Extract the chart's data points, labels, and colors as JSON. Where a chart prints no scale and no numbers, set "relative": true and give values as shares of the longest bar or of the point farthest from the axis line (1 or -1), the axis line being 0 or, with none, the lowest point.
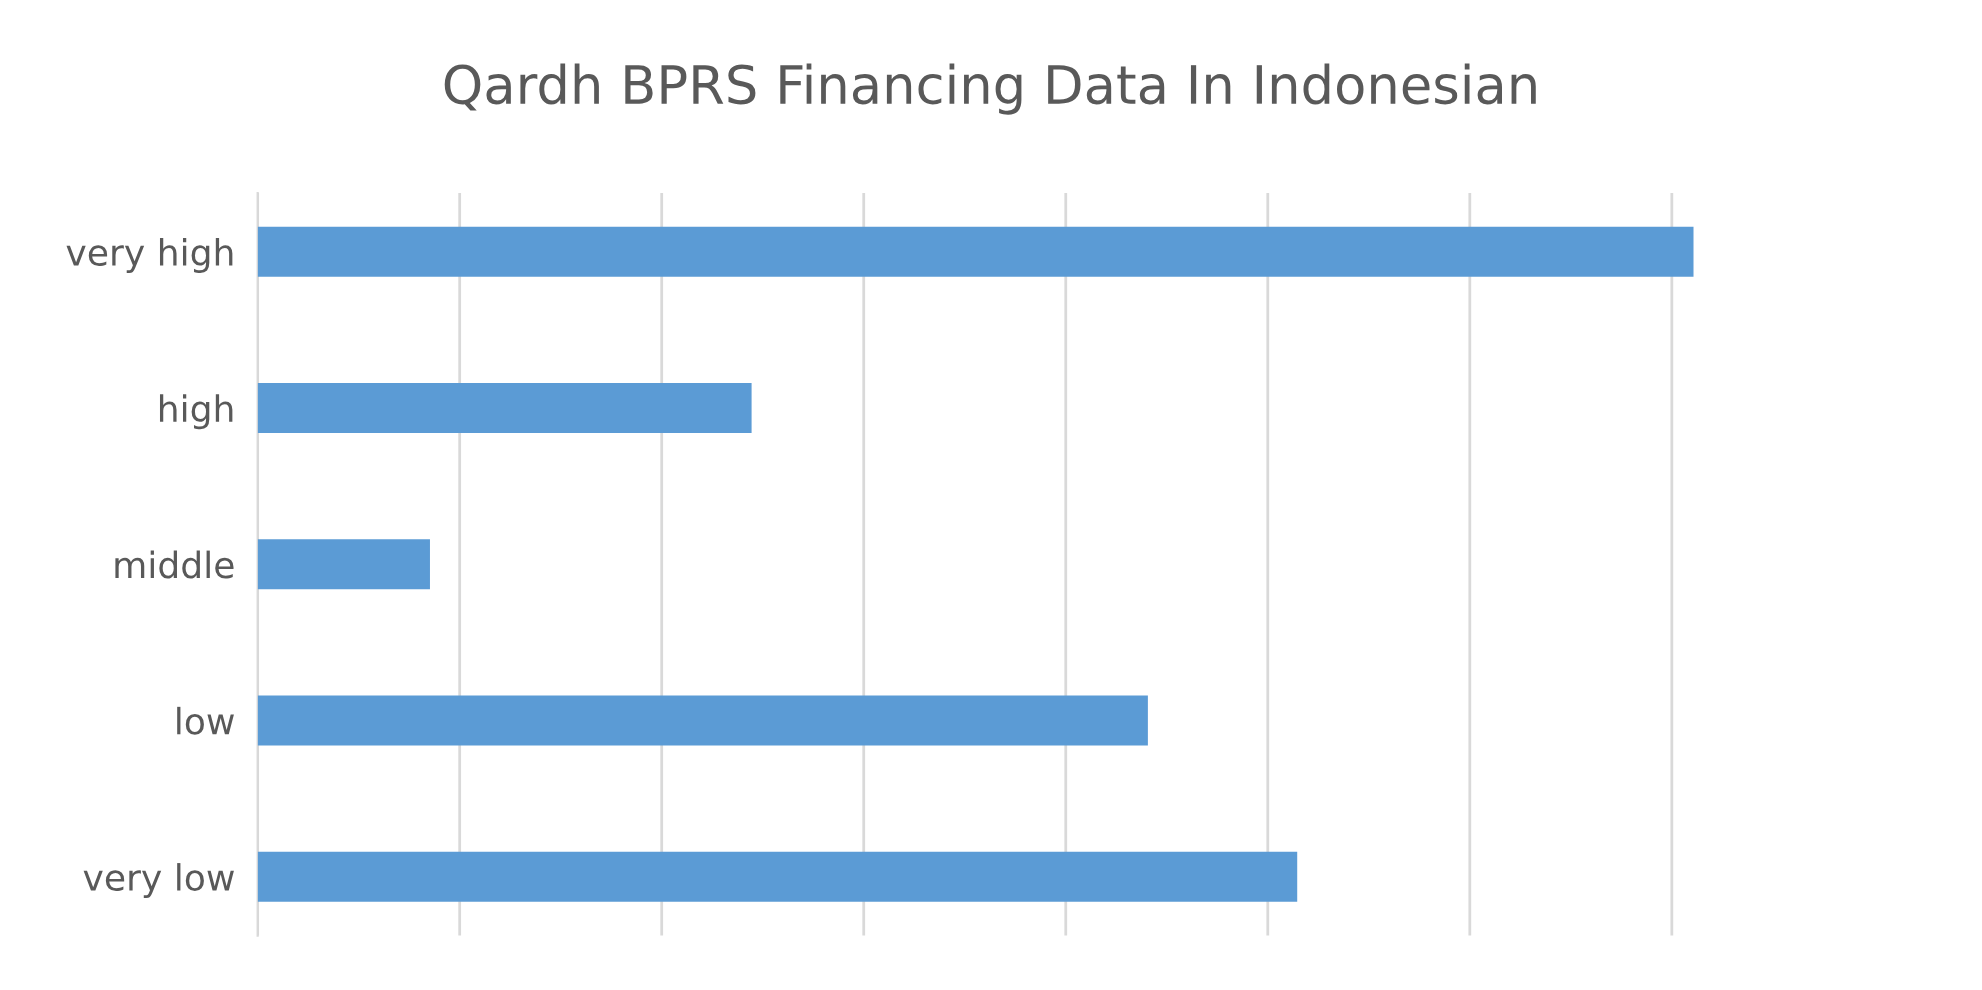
{
  "chart_data": {
    "type": "bar",
    "orientation": "horizontal",
    "relative": true,
    "title": "Qardh BPRS Financing Data In Indonesian",
    "categories": [
      "very high",
      "high",
      "middle",
      "low",
      "very low"
    ],
    "values": [
      1,
      0.344,
      0.12,
      0.62,
      0.724
    ],
    "color": "#5b9bd5",
    "grid": "x"
  }
}
